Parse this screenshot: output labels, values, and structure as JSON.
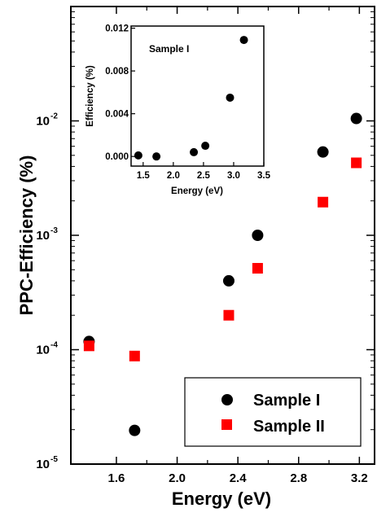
{
  "chart_data": [
    {
      "type": "scatter",
      "xlabel": "Energy (eV)",
      "ylabel": "PPC-Efficiency (%)",
      "xlim": [
        1.3,
        3.3
      ],
      "ylim": [
        1e-05,
        0.1
      ],
      "yscale": "log",
      "x_ticks": [
        "1.6",
        "2.0",
        "2.4",
        "2.8",
        "3.2"
      ],
      "y_ticks": [
        {
          "base": "10",
          "exp": "-5",
          "value": 1e-05
        },
        {
          "base": "10",
          "exp": "-4",
          "value": 0.0001
        },
        {
          "base": "10",
          "exp": "-3",
          "value": 0.001
        },
        {
          "base": "10",
          "exp": "-2",
          "value": 0.01
        }
      ],
      "legend_position": "bottom-right",
      "series": [
        {
          "name": "Sample I",
          "marker": "circle",
          "color": "#000000",
          "points": [
            {
              "x": 1.42,
              "y": 0.000118
            },
            {
              "x": 1.72,
              "y": 1.97e-05
            },
            {
              "x": 2.34,
              "y": 0.0004
            },
            {
              "x": 2.53,
              "y": 0.001
            },
            {
              "x": 2.96,
              "y": 0.00535
            },
            {
              "x": 3.18,
              "y": 0.0105
            }
          ]
        },
        {
          "name": "Sample II",
          "marker": "square",
          "color": "#ff0000",
          "points": [
            {
              "x": 1.42,
              "y": 0.000108
            },
            {
              "x": 1.72,
              "y": 8.8e-05
            },
            {
              "x": 2.34,
              "y": 0.0002
            },
            {
              "x": 2.53,
              "y": 0.000515
            },
            {
              "x": 2.96,
              "y": 0.00195
            },
            {
              "x": 3.18,
              "y": 0.0043
            }
          ]
        }
      ]
    },
    {
      "type": "scatter",
      "title": "Sample I",
      "xlabel": "Energy (eV)",
      "ylabel": "Efficiency (%)",
      "xlim": [
        1.3,
        3.5
      ],
      "ylim": [
        -0.0009,
        0.0122
      ],
      "x_ticks": [
        "1.5",
        "2.0",
        "2.5",
        "3.0",
        "3.5"
      ],
      "y_ticks": [
        "0.000",
        "0.004",
        "0.008",
        "0.012"
      ],
      "series": [
        {
          "marker": "circle",
          "color": "#000000",
          "points": [
            {
              "x": 1.42,
              "y": 0.0001
            },
            {
              "x": 1.72,
              "y": 0.0
            },
            {
              "x": 2.34,
              "y": 0.0004
            },
            {
              "x": 2.53,
              "y": 0.001
            },
            {
              "x": 2.94,
              "y": 0.0055
            },
            {
              "x": 3.17,
              "y": 0.0109
            }
          ]
        }
      ]
    }
  ]
}
